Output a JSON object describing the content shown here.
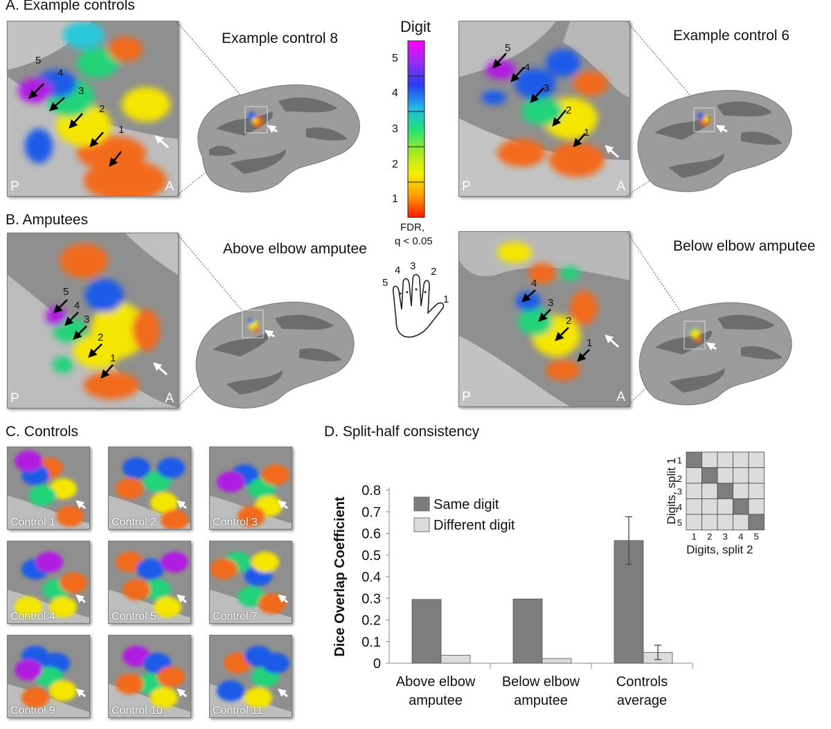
{
  "panels": {
    "a_title": "A. Example controls",
    "b_title": "B. Amputees",
    "c_title": "C. Controls",
    "d_title": "D. Split-half consistency"
  },
  "subjects": {
    "ec8": "Example control 8",
    "ec6": "Example control 6",
    "above": "Above elbow amputee",
    "below": "Below elbow amputee"
  },
  "corners": {
    "posterior": "P",
    "anterior": "A"
  },
  "digit_labels": [
    "1",
    "2",
    "3",
    "4",
    "5"
  ],
  "colorbar": {
    "title": "Digit",
    "ticks": [
      "5",
      "4",
      "3",
      "2",
      "1"
    ],
    "fdr": "FDR,",
    "q": "q < 0.05"
  },
  "hand_labels": [
    "5",
    "4",
    "3",
    "2",
    "1"
  ],
  "controls": [
    "Control 1",
    "Control 2",
    "Control 3",
    "Control 4",
    "Control 5",
    "Control 7",
    "Control 9",
    "Control 10",
    "Control 11"
  ],
  "colors": {
    "digit1": "#f26a1b",
    "digit2": "#f5e600",
    "digit3": "#22d37a",
    "digit4": "#1f5ae8",
    "digit5": "#b01fe0",
    "same": "#7d7d7d",
    "different": "#dcdcdc"
  },
  "chart_data": {
    "type": "bar",
    "ylabel": "Dice Overlap Coefficient",
    "ylim": [
      0,
      0.8
    ],
    "yticks": [
      "0",
      "0.1",
      "0.2",
      "0.3",
      "0.4",
      "0.5",
      "0.6",
      "0.7",
      "0.8"
    ],
    "categories": [
      [
        "Above elbow",
        "amputee"
      ],
      [
        "Below elbow",
        "amputee"
      ],
      [
        "Controls",
        "average"
      ]
    ],
    "series": [
      {
        "name": "Same digit",
        "values": [
          0.295,
          0.297,
          0.567
        ],
        "errors": [
          null,
          null,
          0.11
        ]
      },
      {
        "name": "Different digit",
        "values": [
          0.037,
          0.022,
          0.05
        ],
        "errors": [
          null,
          null,
          0.033
        ]
      }
    ],
    "legend": "top-left"
  },
  "matrix": {
    "ylabel": "Digits, split 1",
    "xlabel": "Digits, split 2",
    "labels": [
      "1",
      "2",
      "3",
      "4",
      "5"
    ]
  }
}
